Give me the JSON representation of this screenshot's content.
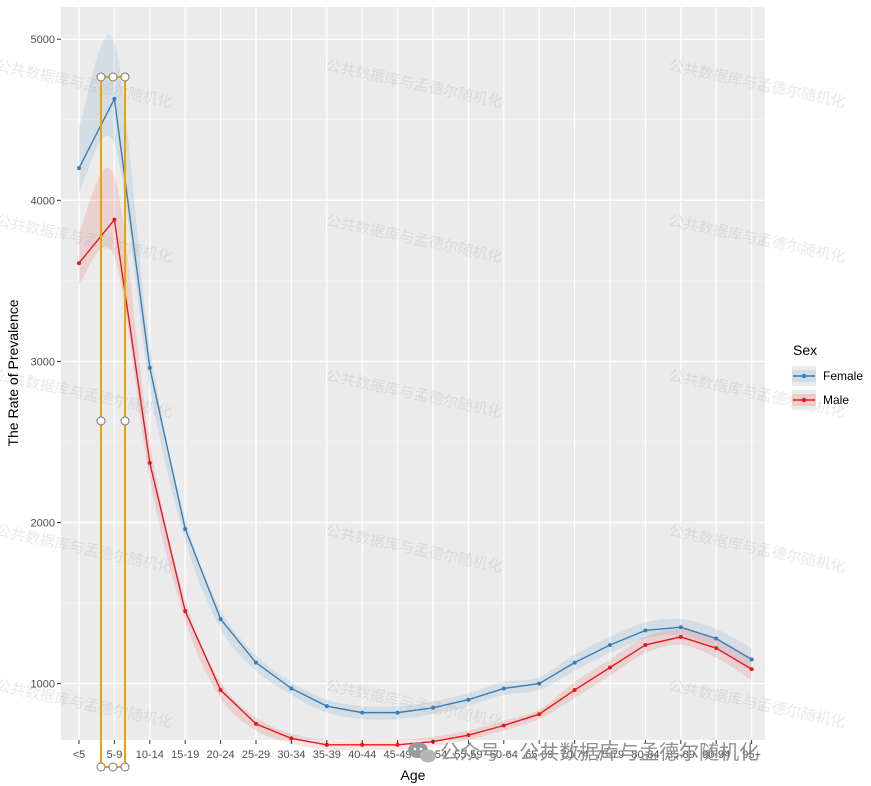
{
  "chart_data": {
    "type": "line",
    "xlabel": "Age",
    "ylabel": "The Rate of Prevalence",
    "categories": [
      "<5",
      "5-9",
      "10-14",
      "15-19",
      "20-24",
      "25-29",
      "30-34",
      "35-39",
      "40-44",
      "45-49",
      "50-54",
      "55-59",
      "60-64",
      "65-69",
      "70-74",
      "75-79",
      "80-84",
      "85-89",
      "90-94",
      "95+"
    ],
    "y_ticks": [
      1000,
      2000,
      3000,
      4000,
      5000
    ],
    "ylim": [
      650,
      5200
    ],
    "grid": true,
    "legend": {
      "title": "Sex",
      "placement": "right"
    },
    "series": [
      {
        "name": "Female",
        "color": "#377EB8",
        "values": [
          4200,
          4630,
          2960,
          1960,
          1400,
          1130,
          970,
          860,
          820,
          820,
          850,
          900,
          970,
          1000,
          1130,
          1240,
          1330,
          1350,
          1280,
          1150
        ],
        "lower": [
          4050,
          4350,
          2840,
          1890,
          1340,
          1080,
          930,
          820,
          780,
          780,
          810,
          860,
          930,
          960,
          1080,
          1190,
          1280,
          1300,
          1220,
          1080
        ],
        "upper": [
          4450,
          4980,
          3100,
          2030,
          1460,
          1180,
          1010,
          900,
          860,
          860,
          890,
          940,
          1010,
          1040,
          1180,
          1290,
          1380,
          1400,
          1340,
          1220
        ]
      },
      {
        "name": "Male",
        "color": "#E41A1C",
        "values": [
          3610,
          3880,
          2370,
          1450,
          960,
          750,
          660,
          620,
          620,
          620,
          640,
          680,
          740,
          810,
          960,
          1100,
          1240,
          1290,
          1220,
          1090
        ],
        "lower": [
          3480,
          3650,
          2270,
          1390,
          910,
          710,
          630,
          590,
          590,
          590,
          610,
          650,
          710,
          780,
          910,
          1050,
          1190,
          1240,
          1160,
          1020
        ],
        "upper": [
          3800,
          4150,
          2500,
          1520,
          1010,
          790,
          690,
          650,
          650,
          650,
          670,
          710,
          770,
          840,
          1010,
          1150,
          1290,
          1340,
          1280,
          1160
        ]
      }
    ]
  },
  "watermark_text": "公共数据库与孟德尔随机化",
  "brand_text": "公众号 · 公共数据库与孟德尔随机化",
  "brand_icon": "wechat-icon",
  "overlay_accent": "#E8A500"
}
